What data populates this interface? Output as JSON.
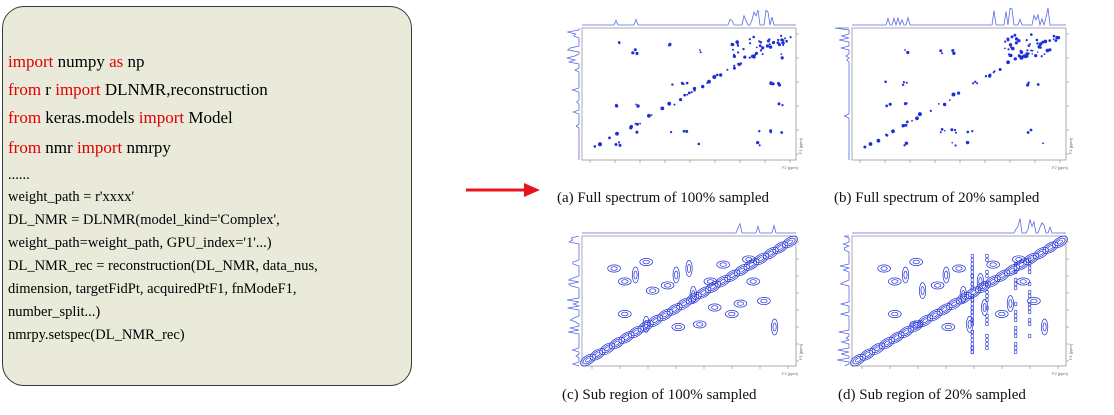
{
  "code": {
    "lines": [
      {
        "parts": [
          {
            "t": "import",
            "k": true
          },
          {
            "t": " numpy ",
            "k": false
          },
          {
            "t": "as",
            "k": true
          },
          {
            "t": " np",
            "k": false
          }
        ],
        "size": "lg"
      },
      {
        "parts": [
          {
            "t": "from",
            "k": true
          },
          {
            "t": " r ",
            "k": false
          },
          {
            "t": "import",
            "k": true
          },
          {
            "t": " DLNMR,reconstruction",
            "k": false
          }
        ],
        "size": "lg"
      },
      {
        "parts": [
          {
            "t": "from",
            "k": true
          },
          {
            "t": " keras.models ",
            "k": false
          },
          {
            "t": "import",
            "k": true
          },
          {
            "t": " Model",
            "k": false
          }
        ],
        "size": "lg"
      },
      {
        "parts": [
          {
            "t": "from",
            "k": true
          },
          {
            "t": " nmr ",
            "k": false
          },
          {
            "t": "import",
            "k": true
          },
          {
            "t": " nmrpy",
            "k": false
          }
        ],
        "size": "lg"
      },
      {
        "parts": [
          {
            "t": "......",
            "k": false
          }
        ],
        "size": "sm"
      },
      {
        "parts": [
          {
            "t": "weight_path = r'xxxx'",
            "k": false
          }
        ],
        "size": "sm"
      },
      {
        "parts": [
          {
            "t": "DL_NMR = DLNMR(model_kind='Complex',",
            "k": false
          }
        ],
        "size": "sm"
      },
      {
        "parts": [
          {
            "t": "weight_path=weight_path, GPU_index='1'...)",
            "k": false
          }
        ],
        "size": "sm"
      },
      {
        "parts": [
          {
            "t": "DL_NMR_rec = reconstruction(DL_NMR, data_nus,",
            "k": false
          }
        ],
        "size": "sm"
      },
      {
        "parts": [
          {
            "t": "dimension, targetFidPt, acquiredPtF1, fnModeF1,",
            "k": false
          }
        ],
        "size": "sm"
      },
      {
        "parts": [
          {
            "t": "number_split...)",
            "k": false
          }
        ],
        "size": "sm"
      },
      {
        "parts": [
          {
            "t": "nmrpy.setspec(DL_NMR_rec)",
            "k": false
          }
        ],
        "size": "sm"
      }
    ]
  },
  "arrow": {
    "color": "#e8141b"
  },
  "colors": {
    "peak": "#1f2fd6",
    "trace": "#5a6ae8"
  },
  "panels": [
    {
      "caption": "(a) Full spectrum of 100% sampled",
      "axis": "F1 [ppm]",
      "xaxis": "F2 [ppm]"
    },
    {
      "caption": "(b) Full spectrum of 20% sampled",
      "axis": "F1 [ppm]",
      "xaxis": "F2 [ppm]"
    },
    {
      "caption": "(c) Sub region of 100% sampled",
      "axis": "F1 [ppm]",
      "xaxis": "F2 [ppm]"
    },
    {
      "caption": "(d) Sub region of 20% sampled",
      "axis": "F1 [ppm]",
      "xaxis": "F2 [ppm]"
    }
  ]
}
